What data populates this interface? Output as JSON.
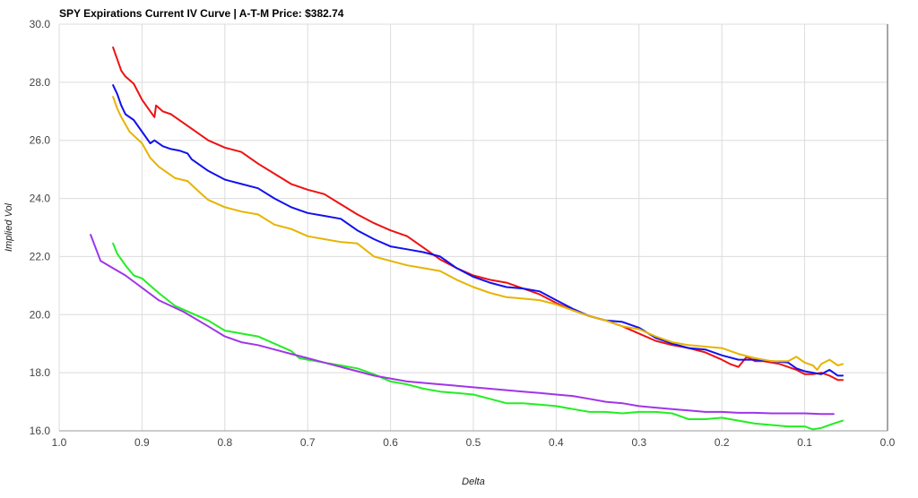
{
  "chart_data": {
    "type": "line",
    "title": "SPY Expirations Current IV Curve | A-T-M Price: $382.74",
    "xlabel": "Delta",
    "ylabel": "Implied Vol",
    "xlim": [
      1.0,
      0.0
    ],
    "ylim": [
      16.0,
      30.0
    ],
    "x_reversed": true,
    "grid": true,
    "legend": "none",
    "x_ticks": [
      "1.0",
      "0.9",
      "0.8",
      "0.7",
      "0.6",
      "0.5",
      "0.4",
      "0.3",
      "0.2",
      "0.1",
      "0.0"
    ],
    "y_ticks": [
      "16.0",
      "18.0",
      "20.0",
      "22.0",
      "24.0",
      "26.0",
      "28.0",
      "30.0"
    ],
    "series": [
      {
        "color": "#ee1111",
        "points": [
          [
            0.935,
            29.2
          ],
          [
            0.93,
            28.8
          ],
          [
            0.925,
            28.4
          ],
          [
            0.92,
            28.2
          ],
          [
            0.91,
            27.95
          ],
          [
            0.9,
            27.4
          ],
          [
            0.89,
            27.0
          ],
          [
            0.885,
            26.8
          ],
          [
            0.883,
            27.2
          ],
          [
            0.875,
            27.0
          ],
          [
            0.865,
            26.9
          ],
          [
            0.86,
            26.8
          ],
          [
            0.84,
            26.4
          ],
          [
            0.82,
            26.0
          ],
          [
            0.8,
            25.75
          ],
          [
            0.78,
            25.6
          ],
          [
            0.76,
            25.2
          ],
          [
            0.74,
            24.85
          ],
          [
            0.72,
            24.5
          ],
          [
            0.7,
            24.3
          ],
          [
            0.68,
            24.15
          ],
          [
            0.66,
            23.8
          ],
          [
            0.64,
            23.45
          ],
          [
            0.62,
            23.15
          ],
          [
            0.6,
            22.9
          ],
          [
            0.58,
            22.7
          ],
          [
            0.56,
            22.3
          ],
          [
            0.54,
            21.9
          ],
          [
            0.52,
            21.6
          ],
          [
            0.5,
            21.35
          ],
          [
            0.48,
            21.2
          ],
          [
            0.46,
            21.1
          ],
          [
            0.44,
            20.9
          ],
          [
            0.42,
            20.7
          ],
          [
            0.4,
            20.4
          ],
          [
            0.38,
            20.15
          ],
          [
            0.36,
            19.95
          ],
          [
            0.34,
            19.8
          ],
          [
            0.32,
            19.6
          ],
          [
            0.3,
            19.35
          ],
          [
            0.28,
            19.1
          ],
          [
            0.26,
            18.95
          ],
          [
            0.24,
            18.85
          ],
          [
            0.22,
            18.7
          ],
          [
            0.2,
            18.45
          ],
          [
            0.19,
            18.3
          ],
          [
            0.18,
            18.2
          ],
          [
            0.17,
            18.55
          ],
          [
            0.16,
            18.4
          ],
          [
            0.15,
            18.4
          ],
          [
            0.14,
            18.35
          ],
          [
            0.13,
            18.3
          ],
          [
            0.12,
            18.2
          ],
          [
            0.11,
            18.1
          ],
          [
            0.1,
            17.95
          ],
          [
            0.09,
            17.95
          ],
          [
            0.08,
            18.0
          ],
          [
            0.07,
            17.9
          ],
          [
            0.06,
            17.75
          ],
          [
            0.054,
            17.75
          ]
        ]
      },
      {
        "color": "#1111ee",
        "points": [
          [
            0.935,
            27.9
          ],
          [
            0.93,
            27.6
          ],
          [
            0.925,
            27.2
          ],
          [
            0.92,
            26.9
          ],
          [
            0.91,
            26.7
          ],
          [
            0.9,
            26.3
          ],
          [
            0.89,
            25.9
          ],
          [
            0.885,
            26.0
          ],
          [
            0.875,
            25.8
          ],
          [
            0.865,
            25.7
          ],
          [
            0.855,
            25.65
          ],
          [
            0.845,
            25.55
          ],
          [
            0.84,
            25.35
          ],
          [
            0.82,
            24.95
          ],
          [
            0.8,
            24.65
          ],
          [
            0.78,
            24.5
          ],
          [
            0.76,
            24.35
          ],
          [
            0.74,
            24.0
          ],
          [
            0.72,
            23.7
          ],
          [
            0.7,
            23.5
          ],
          [
            0.68,
            23.4
          ],
          [
            0.66,
            23.3
          ],
          [
            0.64,
            22.9
          ],
          [
            0.62,
            22.6
          ],
          [
            0.6,
            22.35
          ],
          [
            0.58,
            22.25
          ],
          [
            0.56,
            22.15
          ],
          [
            0.54,
            22.0
          ],
          [
            0.52,
            21.6
          ],
          [
            0.5,
            21.3
          ],
          [
            0.48,
            21.1
          ],
          [
            0.46,
            20.95
          ],
          [
            0.44,
            20.9
          ],
          [
            0.42,
            20.8
          ],
          [
            0.4,
            20.5
          ],
          [
            0.38,
            20.2
          ],
          [
            0.36,
            19.95
          ],
          [
            0.34,
            19.8
          ],
          [
            0.32,
            19.75
          ],
          [
            0.3,
            19.55
          ],
          [
            0.28,
            19.2
          ],
          [
            0.26,
            19.0
          ],
          [
            0.24,
            18.85
          ],
          [
            0.22,
            18.8
          ],
          [
            0.2,
            18.6
          ],
          [
            0.18,
            18.45
          ],
          [
            0.16,
            18.45
          ],
          [
            0.14,
            18.4
          ],
          [
            0.12,
            18.35
          ],
          [
            0.11,
            18.15
          ],
          [
            0.1,
            18.05
          ],
          [
            0.09,
            18.0
          ],
          [
            0.08,
            17.95
          ],
          [
            0.07,
            18.1
          ],
          [
            0.06,
            17.9
          ],
          [
            0.054,
            17.9
          ]
        ]
      },
      {
        "color": "#e6b400",
        "points": [
          [
            0.935,
            27.5
          ],
          [
            0.93,
            27.1
          ],
          [
            0.925,
            26.8
          ],
          [
            0.915,
            26.3
          ],
          [
            0.9,
            25.9
          ],
          [
            0.89,
            25.4
          ],
          [
            0.88,
            25.1
          ],
          [
            0.87,
            24.9
          ],
          [
            0.86,
            24.7
          ],
          [
            0.845,
            24.6
          ],
          [
            0.83,
            24.2
          ],
          [
            0.82,
            23.95
          ],
          [
            0.8,
            23.7
          ],
          [
            0.78,
            23.55
          ],
          [
            0.76,
            23.45
          ],
          [
            0.74,
            23.1
          ],
          [
            0.72,
            22.95
          ],
          [
            0.7,
            22.7
          ],
          [
            0.68,
            22.6
          ],
          [
            0.66,
            22.5
          ],
          [
            0.64,
            22.45
          ],
          [
            0.62,
            22.0
          ],
          [
            0.6,
            21.85
          ],
          [
            0.58,
            21.7
          ],
          [
            0.56,
            21.6
          ],
          [
            0.54,
            21.5
          ],
          [
            0.52,
            21.2
          ],
          [
            0.5,
            20.95
          ],
          [
            0.48,
            20.75
          ],
          [
            0.46,
            20.6
          ],
          [
            0.44,
            20.55
          ],
          [
            0.42,
            20.5
          ],
          [
            0.4,
            20.35
          ],
          [
            0.38,
            20.15
          ],
          [
            0.36,
            19.95
          ],
          [
            0.34,
            19.8
          ],
          [
            0.32,
            19.6
          ],
          [
            0.3,
            19.5
          ],
          [
            0.28,
            19.25
          ],
          [
            0.26,
            19.05
          ],
          [
            0.24,
            18.95
          ],
          [
            0.22,
            18.9
          ],
          [
            0.2,
            18.85
          ],
          [
            0.18,
            18.65
          ],
          [
            0.16,
            18.5
          ],
          [
            0.14,
            18.4
          ],
          [
            0.12,
            18.4
          ],
          [
            0.11,
            18.55
          ],
          [
            0.1,
            18.35
          ],
          [
            0.09,
            18.25
          ],
          [
            0.085,
            18.1
          ],
          [
            0.08,
            18.3
          ],
          [
            0.07,
            18.45
          ],
          [
            0.06,
            18.25
          ],
          [
            0.054,
            18.3
          ]
        ]
      },
      {
        "color": "#22ee22",
        "points": [
          [
            0.935,
            22.45
          ],
          [
            0.93,
            22.1
          ],
          [
            0.92,
            21.7
          ],
          [
            0.91,
            21.35
          ],
          [
            0.9,
            21.25
          ],
          [
            0.89,
            21.0
          ],
          [
            0.88,
            20.75
          ],
          [
            0.86,
            20.3
          ],
          [
            0.84,
            20.05
          ],
          [
            0.82,
            19.8
          ],
          [
            0.8,
            19.45
          ],
          [
            0.78,
            19.35
          ],
          [
            0.76,
            19.25
          ],
          [
            0.74,
            19.0
          ],
          [
            0.72,
            18.75
          ],
          [
            0.71,
            18.5
          ],
          [
            0.7,
            18.45
          ],
          [
            0.68,
            18.35
          ],
          [
            0.66,
            18.25
          ],
          [
            0.64,
            18.15
          ],
          [
            0.62,
            17.95
          ],
          [
            0.6,
            17.7
          ],
          [
            0.58,
            17.6
          ],
          [
            0.56,
            17.45
          ],
          [
            0.54,
            17.35
          ],
          [
            0.52,
            17.3
          ],
          [
            0.5,
            17.25
          ],
          [
            0.48,
            17.1
          ],
          [
            0.46,
            16.95
          ],
          [
            0.44,
            16.95
          ],
          [
            0.42,
            16.9
          ],
          [
            0.4,
            16.85
          ],
          [
            0.38,
            16.75
          ],
          [
            0.36,
            16.65
          ],
          [
            0.34,
            16.65
          ],
          [
            0.32,
            16.6
          ],
          [
            0.3,
            16.65
          ],
          [
            0.28,
            16.65
          ],
          [
            0.26,
            16.6
          ],
          [
            0.24,
            16.4
          ],
          [
            0.22,
            16.4
          ],
          [
            0.2,
            16.45
          ],
          [
            0.18,
            16.35
          ],
          [
            0.16,
            16.25
          ],
          [
            0.14,
            16.2
          ],
          [
            0.12,
            16.15
          ],
          [
            0.1,
            16.15
          ],
          [
            0.09,
            16.05
          ],
          [
            0.08,
            16.1
          ],
          [
            0.07,
            16.2
          ],
          [
            0.06,
            16.3
          ],
          [
            0.054,
            16.35
          ]
        ]
      },
      {
        "color": "#a035e8",
        "points": [
          [
            0.962,
            22.75
          ],
          [
            0.95,
            21.85
          ],
          [
            0.92,
            21.35
          ],
          [
            0.88,
            20.5
          ],
          [
            0.85,
            20.1
          ],
          [
            0.82,
            19.6
          ],
          [
            0.8,
            19.25
          ],
          [
            0.78,
            19.05
          ],
          [
            0.76,
            18.95
          ],
          [
            0.74,
            18.8
          ],
          [
            0.72,
            18.65
          ],
          [
            0.7,
            18.5
          ],
          [
            0.68,
            18.35
          ],
          [
            0.66,
            18.2
          ],
          [
            0.64,
            18.05
          ],
          [
            0.62,
            17.9
          ],
          [
            0.6,
            17.8
          ],
          [
            0.58,
            17.7
          ],
          [
            0.56,
            17.65
          ],
          [
            0.54,
            17.6
          ],
          [
            0.52,
            17.55
          ],
          [
            0.5,
            17.5
          ],
          [
            0.48,
            17.45
          ],
          [
            0.46,
            17.4
          ],
          [
            0.44,
            17.35
          ],
          [
            0.42,
            17.3
          ],
          [
            0.4,
            17.25
          ],
          [
            0.38,
            17.2
          ],
          [
            0.36,
            17.1
          ],
          [
            0.34,
            17.0
          ],
          [
            0.32,
            16.95
          ],
          [
            0.3,
            16.85
          ],
          [
            0.28,
            16.8
          ],
          [
            0.26,
            16.75
          ],
          [
            0.24,
            16.7
          ],
          [
            0.22,
            16.65
          ],
          [
            0.2,
            16.65
          ],
          [
            0.18,
            16.62
          ],
          [
            0.16,
            16.62
          ],
          [
            0.14,
            16.6
          ],
          [
            0.12,
            16.6
          ],
          [
            0.1,
            16.6
          ],
          [
            0.08,
            16.58
          ],
          [
            0.065,
            16.58
          ]
        ]
      }
    ]
  }
}
